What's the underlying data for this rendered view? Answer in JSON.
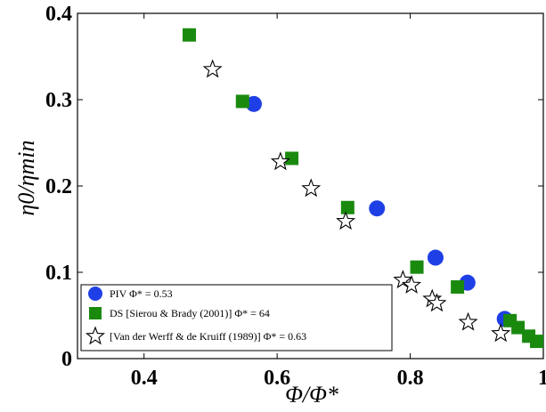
{
  "chart_data": {
    "type": "scatter",
    "xlabel": "Φ/Φ*",
    "ylabel": "η0/ηmin",
    "xlim": [
      0.3,
      1.0
    ],
    "ylim": [
      0,
      0.4
    ],
    "xticks": [
      0.4,
      0.6,
      0.8,
      1.0
    ],
    "xtick_labels": [
      "0.4",
      "0.6",
      "0.8",
      "1"
    ],
    "yticks": [
      0,
      0.1,
      0.2,
      0.3,
      0.4
    ],
    "ytick_labels": [
      "0",
      "0.1",
      "0.2",
      "0.3",
      "0.4"
    ],
    "grid": false,
    "legend_position": "bottom-left",
    "series": [
      {
        "name": "PIV    Φ* = 0.53",
        "marker": "circle",
        "color": "#1f3fe6",
        "points": [
          [
            0.565,
            0.295
          ],
          [
            0.75,
            0.174
          ],
          [
            0.838,
            0.117
          ],
          [
            0.886,
            0.088
          ],
          [
            0.942,
            0.046
          ]
        ]
      },
      {
        "name": "DS [Sierou & Brady (2001)] Φ* = 64",
        "marker": "square",
        "color": "#1a8a0f",
        "points": [
          [
            0.468,
            0.375
          ],
          [
            0.548,
            0.298
          ],
          [
            0.622,
            0.232
          ],
          [
            0.706,
            0.175
          ],
          [
            0.81,
            0.106
          ],
          [
            0.871,
            0.083
          ],
          [
            0.95,
            0.044
          ],
          [
            0.962,
            0.036
          ],
          [
            0.978,
            0.026
          ],
          [
            0.99,
            0.02
          ]
        ]
      },
      {
        "name": "[Van der Werff & de Kruiff (1989)] Φ* = 0.63",
        "marker": "star",
        "color": "#000000",
        "points": [
          [
            0.503,
            0.335
          ],
          [
            0.605,
            0.228
          ],
          [
            0.651,
            0.197
          ],
          [
            0.703,
            0.159
          ],
          [
            0.789,
            0.091
          ],
          [
            0.802,
            0.085
          ],
          [
            0.833,
            0.069
          ],
          [
            0.84,
            0.064
          ],
          [
            0.887,
            0.042
          ],
          [
            0.936,
            0.029
          ]
        ]
      }
    ]
  }
}
